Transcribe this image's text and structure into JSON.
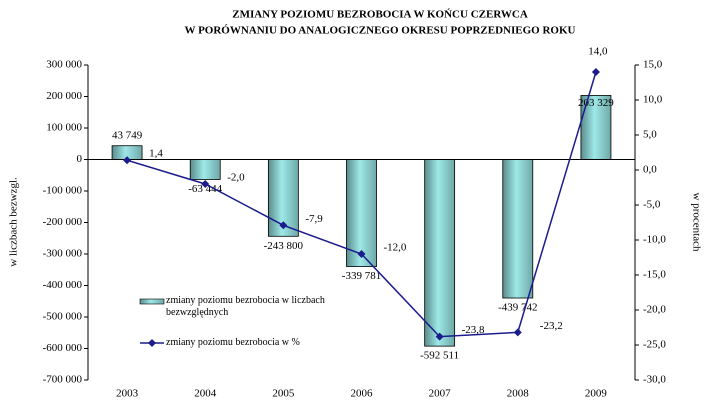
{
  "chart_data": {
    "type": "bar_line",
    "title": [
      "ZMIANY POZIOMU BEZROBOCIA W KOŃCU CZERWCA",
      "W PORÓWNANIU DO ANALOGICZNEGO OKRESU POPRZEDNIEGO ROKU"
    ],
    "y_label": "w liczbach bezwzgl.",
    "y2_label": "w procentach",
    "categories": [
      "2003",
      "2004",
      "2005",
      "2006",
      "2007",
      "2008",
      "2009"
    ],
    "series": [
      {
        "name": "zmiany poziomu bezrobocia w liczbach bezwzględnych",
        "type": "bar",
        "color": "#9ee8e8",
        "values": [
          43749,
          -63444,
          -243800,
          -339781,
          -592511,
          -439742,
          203329
        ],
        "value_labels": [
          "43 749",
          "-63 444",
          "-243 800",
          "-339 781",
          "-592 511",
          "-439 742",
          "203 329"
        ]
      },
      {
        "name": "zmiany poziomu bezrobocia w %",
        "type": "line",
        "axis": "y2",
        "color": "#1c1c8c",
        "values": [
          1.4,
          -2.0,
          -7.9,
          -12.0,
          -23.8,
          -23.2,
          14.0
        ],
        "value_labels": [
          "1,4",
          "-2,0",
          "-7,9",
          "-12,0",
          "-23,8",
          "-23,2",
          "14,0"
        ]
      }
    ],
    "ylim": [
      -700000,
      300000
    ],
    "yticks": [
      {
        "value": 300000,
        "label": "300 000"
      },
      {
        "value": 200000,
        "label": "200 000"
      },
      {
        "value": 100000,
        "label": "100 000"
      },
      0,
      {
        "value": -100000,
        "label": "-100 000"
      },
      {
        "value": -200000,
        "label": "-200 000"
      },
      {
        "value": -300000,
        "label": "-300 000"
      },
      {
        "value": -400000,
        "label": "-400 000"
      },
      {
        "value": -500000,
        "label": "-500 000"
      },
      {
        "value": -600000,
        "label": "-600 000"
      },
      {
        "value": -700000,
        "label": "-700 000"
      }
    ],
    "y2lim": [
      -30,
      15
    ],
    "y2ticks": [
      {
        "value": 15,
        "label": "15,0"
      },
      {
        "value": 10,
        "label": "10,0"
      },
      {
        "value": 5,
        "label": "5,0"
      },
      {
        "value": 0,
        "label": "0,0"
      },
      {
        "value": -5,
        "label": "-5,0"
      },
      {
        "value": -10,
        "label": "-10,0"
      },
      {
        "value": -15,
        "label": "-15,0"
      },
      {
        "value": -20,
        "label": "-20,0"
      },
      {
        "value": -25,
        "label": "-25,0"
      },
      {
        "value": -30,
        "label": "-30,0"
      }
    ],
    "grid": false
  }
}
